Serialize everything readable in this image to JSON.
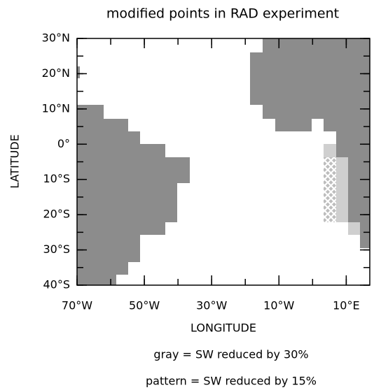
{
  "chart_data": {
    "type": "map",
    "title": "modified points in RAD experiment",
    "x_label": "LONGITUDE",
    "y_label": "LATITUDE",
    "annotations": [
      "gray = SW reduced by 30%",
      "pattern = SW reduced by 15%"
    ],
    "xlim": [
      -70,
      17
    ],
    "ylim": [
      -40,
      30
    ],
    "xticks": [
      {
        "value": -70,
        "label": "70°W"
      },
      {
        "value": -50,
        "label": "50°W"
      },
      {
        "value": -30,
        "label": "30°W"
      },
      {
        "value": -10,
        "label": "10°W"
      },
      {
        "value": 10,
        "label": "10°E"
      }
    ],
    "yticks": [
      {
        "value": 30,
        "label": "30°N"
      },
      {
        "value": 20,
        "label": "20°N"
      },
      {
        "value": 10,
        "label": "10°N"
      },
      {
        "value": 0,
        "label": "0°"
      },
      {
        "value": -10,
        "label": "10°S"
      },
      {
        "value": -20,
        "label": "20°S"
      },
      {
        "value": -30,
        "label": "30°S"
      },
      {
        "value": -40,
        "label": "40°S"
      }
    ]
  }
}
